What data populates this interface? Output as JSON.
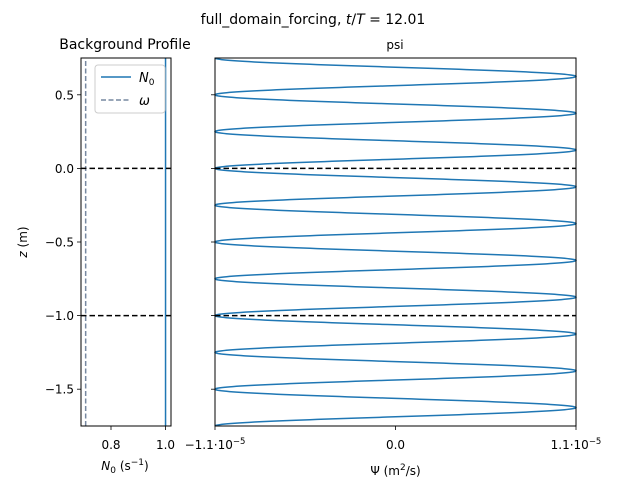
{
  "figure": {
    "suptitle_pre": "full_domain_forcing, ",
    "suptitle_t": "t",
    "suptitle_slash": "/",
    "suptitle_T": "T",
    "suptitle_post": " = 12.01"
  },
  "chart_data": [
    {
      "type": "line",
      "title": "Background Profile",
      "xlabel_main": "N",
      "xlabel_sub": "0",
      "xlabel_unit_pre": " (s",
      "xlabel_unit_sup": "−1",
      "xlabel_unit_post": ")",
      "ylabel_italic": "z",
      "ylabel_rest": " (m)",
      "xlim": [
        0.69,
        1.02
      ],
      "ylim": [
        -1.75,
        0.75
      ],
      "xticks": [
        0.8,
        1.0
      ],
      "xtick_labels": [
        "0.8",
        "1.0"
      ],
      "yticks": [
        0.5,
        0.0,
        -0.5,
        -1.0,
        -1.5
      ],
      "ytick_labels": [
        "0.5",
        "0.0",
        "−0.5",
        "−1.0",
        "−1.5"
      ],
      "grid": false,
      "legend_position": "top-right",
      "series": [
        {
          "name_main": "N",
          "name_sub": "0",
          "style": "solid",
          "color": "#1f77b4",
          "x": [
            1.0,
            1.0
          ],
          "y": [
            -1.75,
            0.75
          ]
        },
        {
          "name_main": "ω",
          "name_sub": "",
          "style": "dashed",
          "color": "#7788a0",
          "x": [
            0.7071,
            0.7071
          ],
          "y": [
            -1.75,
            0.75
          ]
        }
      ],
      "hlines": [
        {
          "y": 0.0,
          "style": "dashed",
          "color": "#000000"
        },
        {
          "y": -1.0,
          "style": "dashed",
          "color": "#000000"
        }
      ]
    },
    {
      "type": "line",
      "title": "psi",
      "xlabel_pre": "Ψ (m",
      "xlabel_sup": "2",
      "xlabel_post": "/s)",
      "xlim": [
        -1.1e-05,
        1.1e-05
      ],
      "ylim": [
        -1.75,
        0.75
      ],
      "xtick_labels": [
        "−1.1·10",
        "0.0",
        "1.1·10"
      ],
      "xtick_exps": [
        "−5",
        "",
        "−5"
      ],
      "grid": false,
      "series": [
        {
          "name": "",
          "color": "#1f77b4",
          "function": "sine",
          "amplitude": 1.1e-05,
          "wavelength_m": 0.25,
          "phase_note": "minima at z = 0.75, 0.5, 0.25, 0.0, ...; maxima at z = 0.625, 0.375, 0.125, ..."
        }
      ],
      "hlines": [
        {
          "y": 0.0,
          "style": "dashed",
          "color": "#000000"
        },
        {
          "y": -1.0,
          "style": "dashed",
          "color": "#000000"
        }
      ]
    }
  ]
}
